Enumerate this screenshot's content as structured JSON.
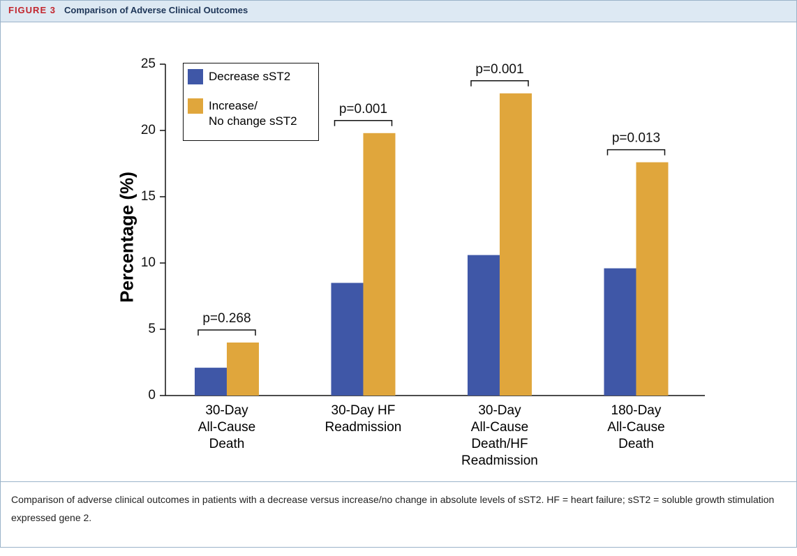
{
  "figure_label": "FIGURE 3",
  "figure_title": "Comparison of Adverse Clinical Outcomes",
  "caption": "Comparison of adverse clinical outcomes in patients with a decrease versus increase/no change in absolute levels of sST2. HF = heart failure; sST2 = soluble growth stimulation expressed gene 2.",
  "chart_data": {
    "type": "bar",
    "y_label": "Percentage (%)",
    "categories": [
      "30-Day\nAll-Cause\nDeath",
      "30-Day HF\nReadmission",
      "30-Day\nAll-Cause\nDeath/HF\nReadmission",
      "180-Day\nAll-Cause\nDeath"
    ],
    "series": [
      {
        "name": "Decrease sST2",
        "color": "#3f57a7",
        "values": [
          2.1,
          8.5,
          10.6,
          9.6
        ]
      },
      {
        "name": "Increase/\nNo change sST2",
        "color": "#e0a63c",
        "values": [
          4.0,
          19.8,
          22.8,
          17.6
        ]
      }
    ],
    "annotations": [
      "p=0.268",
      "p=0.001",
      "p=0.001",
      "p=0.013"
    ],
    "ylim": [
      0,
      25
    ],
    "yticks": [
      0,
      5,
      10,
      15,
      20,
      25
    ],
    "legend": "upper-left"
  }
}
